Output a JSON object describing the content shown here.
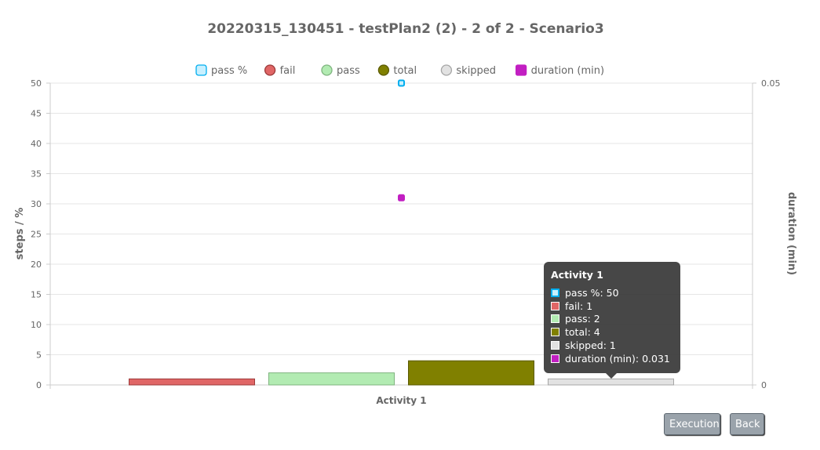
{
  "chart_data": {
    "type": "bar",
    "title": "20220315_130451 - testPlan2 (2) - 2 of 2 - Scenario3",
    "categories": [
      "Activity 1"
    ],
    "ylabel": "steps / %",
    "y2label": "duration (min)",
    "ylim": [
      0,
      50
    ],
    "y2lim": [
      0,
      0.05
    ],
    "y_ticks": [
      "0",
      "5",
      "10",
      "15",
      "20",
      "25",
      "30",
      "35",
      "40",
      "45",
      "50"
    ],
    "y2_ticks": [
      "0",
      "0.05"
    ],
    "grid": true,
    "legend_position": "top",
    "series": [
      {
        "name": "pass %",
        "type": "point",
        "values": [
          50
        ],
        "axis": "left",
        "color": "#00aeef",
        "fill": "#c8f0ff"
      },
      {
        "name": "fail",
        "type": "bar",
        "values": [
          1
        ],
        "axis": "left",
        "color": "#e06666",
        "border": "#9b3a3a"
      },
      {
        "name": "pass",
        "type": "bar",
        "values": [
          2
        ],
        "axis": "left",
        "color": "#b2ebb2",
        "border": "#7fb47f"
      },
      {
        "name": "total",
        "type": "bar",
        "values": [
          4
        ],
        "axis": "left",
        "color": "#808000",
        "border": "#5a5a00"
      },
      {
        "name": "skipped",
        "type": "bar",
        "values": [
          1
        ],
        "axis": "left",
        "color": "#e2e2e2",
        "border": "#a6a6a6"
      },
      {
        "name": "duration (min)",
        "type": "point",
        "values": [
          0.031
        ],
        "axis": "right",
        "color": "#c21fc2",
        "fill": "#c21fc2"
      }
    ]
  },
  "tooltip": {
    "title": "Activity 1",
    "rows": [
      "pass %: 50",
      "fail: 1",
      "pass: 2",
      "total: 4",
      "skipped: 1",
      "duration (min): 0.031"
    ]
  },
  "buttons": {
    "execution": "Execution",
    "back": "Back"
  }
}
